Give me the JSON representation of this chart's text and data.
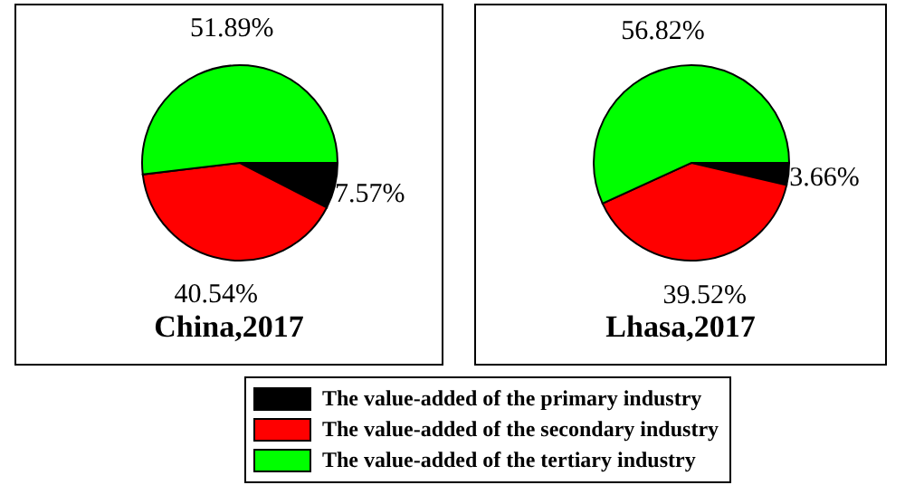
{
  "chart_data": [
    {
      "type": "pie",
      "title": "China,2017",
      "categories": [
        "The value-added of the primary industry",
        "The value-added of the secondary industry",
        "The value-added of the tertiary industry"
      ],
      "values": [
        7.57,
        40.54,
        51.89
      ],
      "colors": [
        "#000000",
        "#ff0000",
        "#00ff00"
      ],
      "value_labels": [
        "7.57%",
        "40.54%",
        "51.89%"
      ],
      "legend": "bottom"
    },
    {
      "type": "pie",
      "title": "Lhasa,2017",
      "categories": [
        null,
        null,
        null
      ],
      "values": [
        3.66,
        39.52,
        56.82
      ],
      "colors": [
        "#000000",
        "#ff0000",
        "#00ff00"
      ],
      "value_labels": [
        "3.66%",
        "39.52%",
        "56.82%"
      ]
    }
  ]
}
